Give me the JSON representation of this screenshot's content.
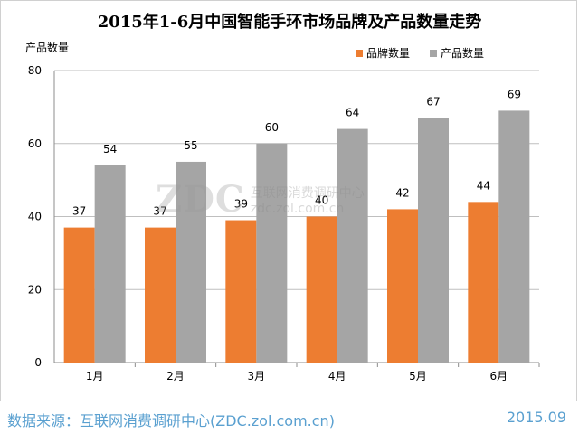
{
  "chart_data": {
    "type": "bar",
    "title": "2015年1-6月中国智能手环市场品牌及产品数量走势",
    "ylabel": "产品数量",
    "xlabel": "",
    "categories": [
      "1月",
      "2月",
      "3月",
      "4月",
      "5月",
      "6月"
    ],
    "series": [
      {
        "name": "品牌数量",
        "values": [
          37,
          37,
          39,
          40,
          42,
          44
        ],
        "color": "#ed7d31"
      },
      {
        "name": "产品数量",
        "values": [
          54,
          55,
          60,
          64,
          67,
          69
        ],
        "color": "#a5a5a5"
      }
    ],
    "ylim": [
      0,
      80
    ],
    "yticks": [
      0,
      20,
      40,
      60,
      80
    ],
    "grid": true,
    "legend": "top-right"
  },
  "watermark": {
    "logo": "ZDC",
    "name": "互联网消费调研中心",
    "url": "zdc.zol.com.cn"
  },
  "footer": {
    "source": "数据来源：互联网消费调研中心(ZDC.zol.com.cn)",
    "date": "2015.09"
  }
}
